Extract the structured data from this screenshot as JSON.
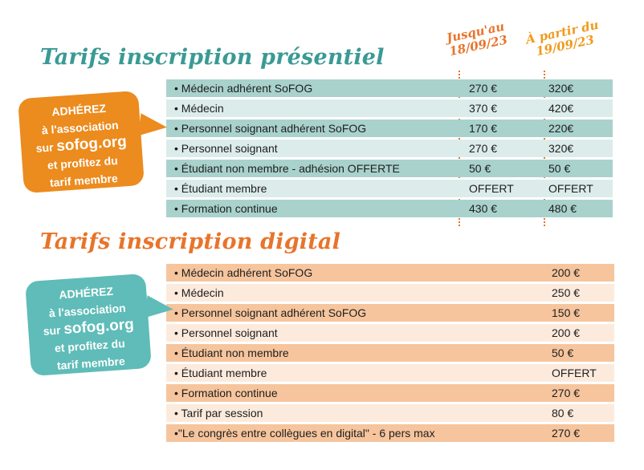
{
  "presentiel": {
    "title": "Tarifs inscription présentiel",
    "col1": "Jusqu'au\n18/09/23",
    "col2": "À partir du\n19/09/23",
    "rows": [
      {
        "label": "• Médecin adhérent SoFOG",
        "p1": "270 €",
        "p2": "320€"
      },
      {
        "label": "• Médecin",
        "p1": "370 €",
        "p2": "420€"
      },
      {
        "label": "• Personnel soignant adhérent SoFOG",
        "p1": "170 €",
        "p2": "220€"
      },
      {
        "label": "• Personnel soignant",
        "p1": "270 €",
        "p2": "320€"
      },
      {
        "label": "• Étudiant non membre - adhésion OFFERTE",
        "p1": "50 €",
        "p2": "50 €"
      },
      {
        "label": "• Étudiant membre",
        "p1": "OFFERT",
        "p2": "OFFERT"
      },
      {
        "label": "• Formation continue",
        "p1": "430 €",
        "p2": "480 €"
      }
    ]
  },
  "digital": {
    "title": "Tarifs inscription digital",
    "rows": [
      {
        "label": "• Médecin adhérent SoFOG",
        "price": "200 €"
      },
      {
        "label": "• Médecin",
        "price": "250 €"
      },
      {
        "label": "• Personnel soignant adhérent SoFOG",
        "price": "150 €"
      },
      {
        "label": "• Personnel soignant",
        "price": "200 €"
      },
      {
        "label": "• Étudiant non membre",
        "price": "50 €"
      },
      {
        "label": "• Étudiant membre",
        "price": "OFFERT"
      },
      {
        "label": "• Formation continue",
        "price": "270 €"
      },
      {
        "label": "• Tarif par session",
        "price": "80 €"
      },
      {
        "label": "•\"Le congrès entre collègues en digital\" - 6 pers max",
        "price": "270 €"
      }
    ]
  },
  "bubble": {
    "line1": "ADHÉREZ",
    "line2": "à l'association",
    "line3_pre": "sur ",
    "line3_link": "sofog.org",
    "line4": "et profitez du",
    "line5": "tarif membre"
  },
  "colors": {
    "teal": "#3a9a94",
    "orange": "#e8742a",
    "bubble_orange": "#ec8b1e",
    "bubble_teal": "#5fbcb8"
  }
}
